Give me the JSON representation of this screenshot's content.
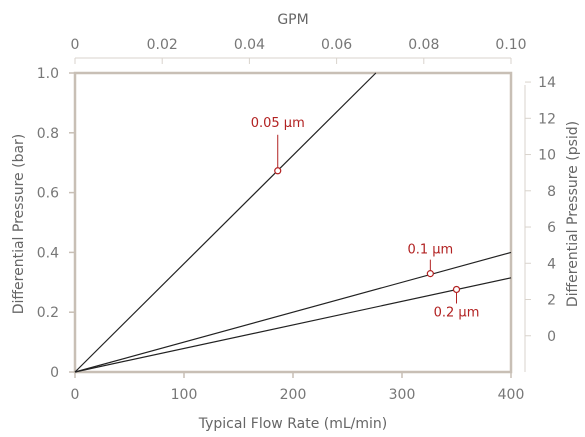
{
  "chart_data": {
    "type": "line",
    "top_axis": {
      "label": "GPM",
      "range": [
        0,
        0.1
      ],
      "ticks": [
        "0",
        "0.02",
        "0.04",
        "0.06",
        "0.08",
        "0.10"
      ]
    },
    "bottom_axis": {
      "label": "Typical Flow Rate (mL/min)",
      "range": [
        0,
        400
      ],
      "ticks": [
        "0",
        "100",
        "200",
        "300",
        "400"
      ]
    },
    "left_axis": {
      "label": "Differential Pressure (bar)",
      "range": [
        0,
        1.0
      ],
      "ticks": [
        "0",
        "0.2",
        "0.4",
        "0.6",
        "0.8",
        "1.0"
      ]
    },
    "right_axis": {
      "label": "Differential Pressure (psid)",
      "range": [
        -2,
        14.5
      ],
      "ticks": [
        "0",
        "2",
        "4",
        "6",
        "8",
        "10",
        "12",
        "14"
      ]
    },
    "series": [
      {
        "name": "0.05 µm",
        "x": [
          0,
          276
        ],
        "y": [
          0,
          1.0
        ],
        "marker": {
          "x": 186,
          "y": 0.673
        }
      },
      {
        "name": "0.1 µm",
        "x": [
          0,
          400
        ],
        "y": [
          0,
          0.4
        ],
        "marker": {
          "x": 326,
          "y": 0.329
        }
      },
      {
        "name": "0.2 µm",
        "x": [
          0,
          400
        ],
        "y": [
          0,
          0.315
        ],
        "marker": {
          "x": 350,
          "y": 0.276
        }
      }
    ],
    "colors": {
      "line": "#222222",
      "frame": "#c8bfb5",
      "annotation": "#b22222"
    },
    "grid": false
  }
}
